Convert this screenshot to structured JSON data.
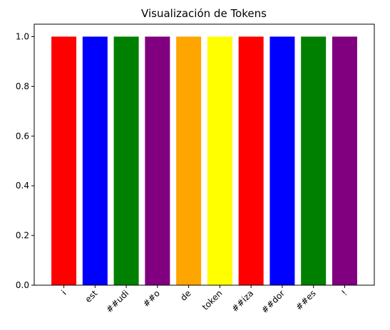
{
  "chart_data": {
    "type": "bar",
    "title": "Visualización de Tokens",
    "xlabel": "",
    "ylabel": "",
    "categories": [
      "i",
      "est",
      "##udi",
      "##o",
      "de",
      "token",
      "##iza",
      "##dor",
      "##es",
      "!"
    ],
    "values": [
      1.0,
      1.0,
      1.0,
      1.0,
      1.0,
      1.0,
      1.0,
      1.0,
      1.0,
      1.0
    ],
    "colors": [
      "#ff0000",
      "#0000ff",
      "#008000",
      "#800080",
      "#ffa500",
      "#ffff00",
      "#ff0000",
      "#0000ff",
      "#008000",
      "#800080"
    ],
    "ylim": [
      0,
      1.05
    ],
    "yticks": [
      0.0,
      0.2,
      0.4,
      0.6,
      0.8,
      1.0
    ],
    "ytick_labels": [
      "0.0",
      "0.2",
      "0.4",
      "0.6",
      "0.8",
      "1.0"
    ],
    "xtick_rotation_deg": 45,
    "grid": false,
    "legend": "none"
  }
}
